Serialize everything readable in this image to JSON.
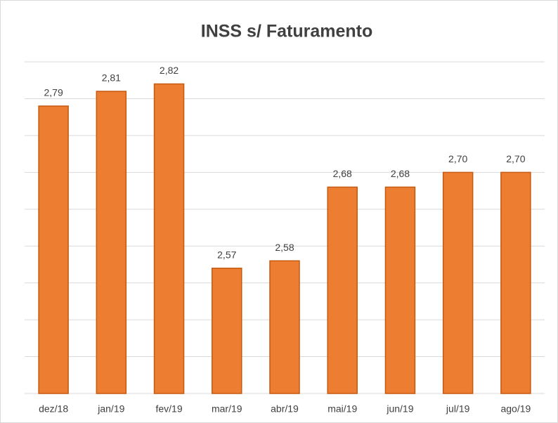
{
  "chart_data": {
    "type": "bar",
    "title": "INSS s/ Faturamento",
    "categories": [
      "dez/18",
      "jan/19",
      "fev/19",
      "mar/19",
      "abr/19",
      "mai/19",
      "jun/19",
      "jul/19",
      "ago/19"
    ],
    "values": [
      2.79,
      2.81,
      2.82,
      2.57,
      2.58,
      2.68,
      2.68,
      2.7,
      2.7
    ],
    "value_labels": [
      "2,79",
      "2,81",
      "2,82",
      "2,57",
      "2,58",
      "2,68",
      "2,68",
      "2,70",
      "2,70"
    ],
    "color": "#ed7d31",
    "ylim": [
      2.4,
      2.85
    ],
    "yticks": [
      2.4,
      2.45,
      2.5,
      2.55,
      2.6,
      2.65,
      2.7,
      2.75,
      2.8,
      2.85
    ],
    "grid": true
  }
}
